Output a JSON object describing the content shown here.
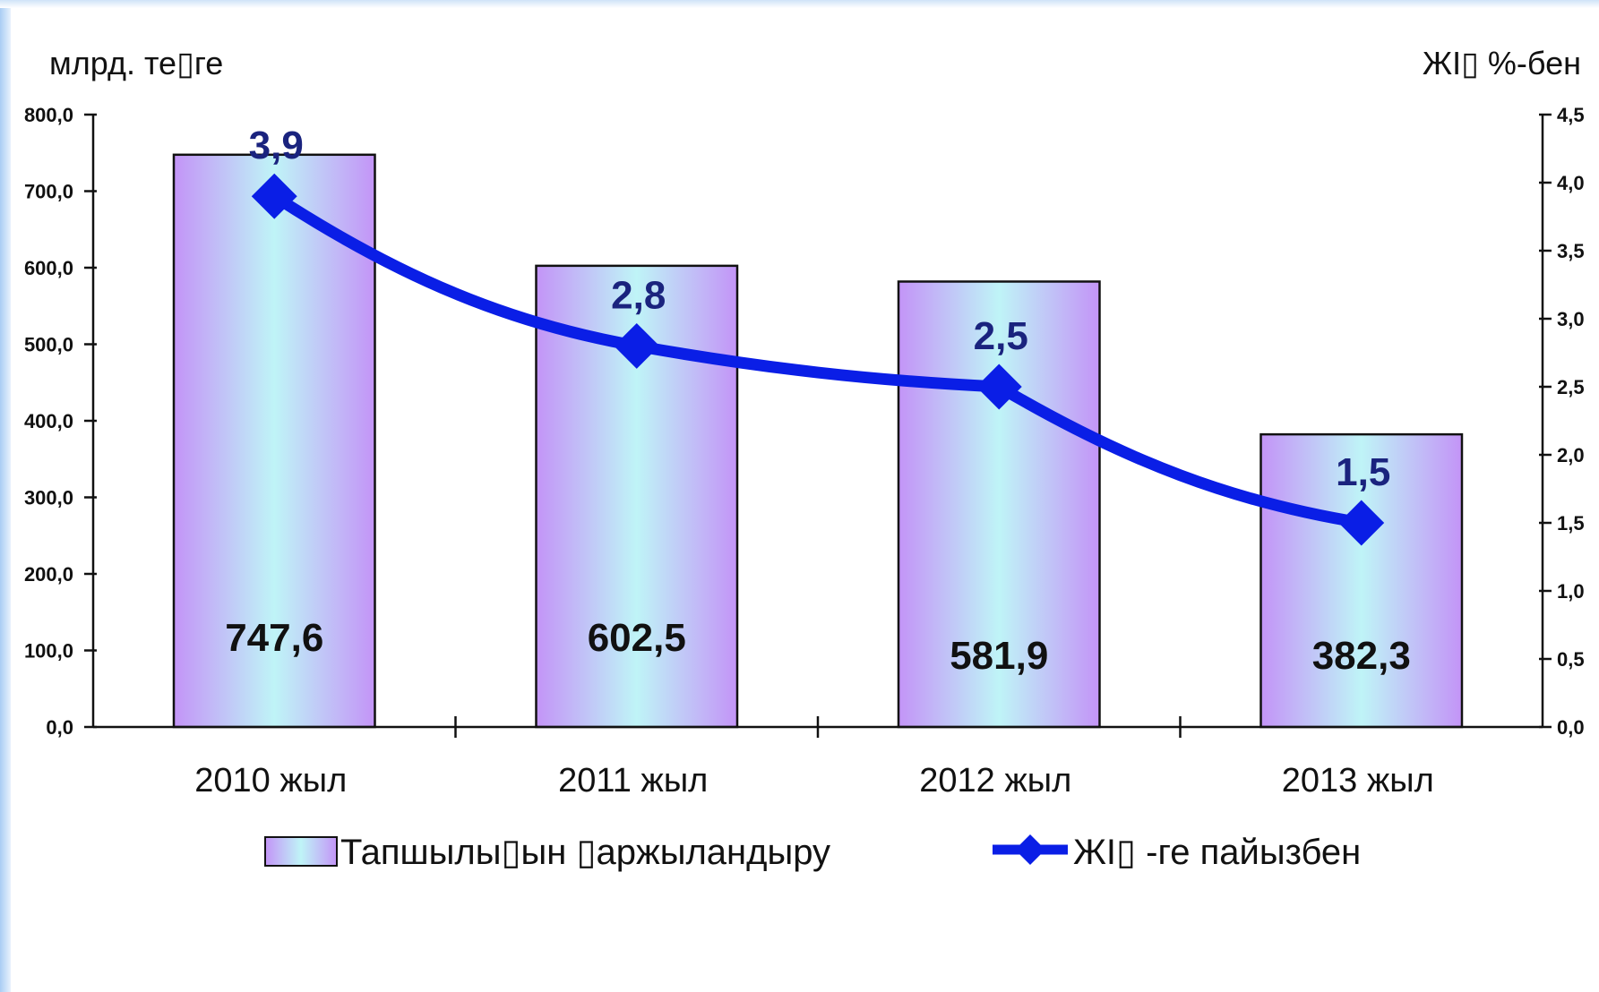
{
  "chart_data": {
    "type": "bar+line",
    "categories": [
      "2010 жыл",
      "2011 жыл",
      "2012 жыл",
      "2013 жыл"
    ],
    "left_axis": {
      "title": "млрд. те▯ге",
      "range": [
        0,
        800
      ],
      "ticks": [
        "0,0",
        "100,0",
        "200,0",
        "300,0",
        "400,0",
        "500,0",
        "600,0",
        "700,0",
        "800,0"
      ],
      "tick_values": [
        0,
        100,
        200,
        300,
        400,
        500,
        600,
        700,
        800
      ]
    },
    "right_axis": {
      "title": "ЖI▯  %-бен",
      "range": [
        0,
        4.5
      ],
      "ticks": [
        "0,0",
        "0,5",
        "1,0",
        "1,5",
        "2,0",
        "2,5",
        "3,0",
        "3,5",
        "4,0",
        "4,5"
      ],
      "tick_values": [
        0,
        0.5,
        1.0,
        1.5,
        2.0,
        2.5,
        3.0,
        3.5,
        4.0,
        4.5
      ]
    },
    "series": [
      {
        "name": "Тапшылы▯ын ▯аржыландыру",
        "kind": "bar",
        "axis": "left",
        "values": [
          747.6,
          602.5,
          581.9,
          382.3
        ],
        "labels": [
          "747,6",
          "602,5",
          "581,9",
          "382,3"
        ],
        "color": "#c79af7"
      },
      {
        "name": "ЖI▯ -ге пайызбен",
        "kind": "line",
        "axis": "right",
        "values": [
          3.9,
          2.8,
          2.5,
          1.5
        ],
        "labels": [
          "3,9",
          "2,8",
          "2,5",
          "1,5"
        ],
        "color": "#0a1ee6"
      }
    ],
    "legend_position": "bottom",
    "grid": false
  }
}
